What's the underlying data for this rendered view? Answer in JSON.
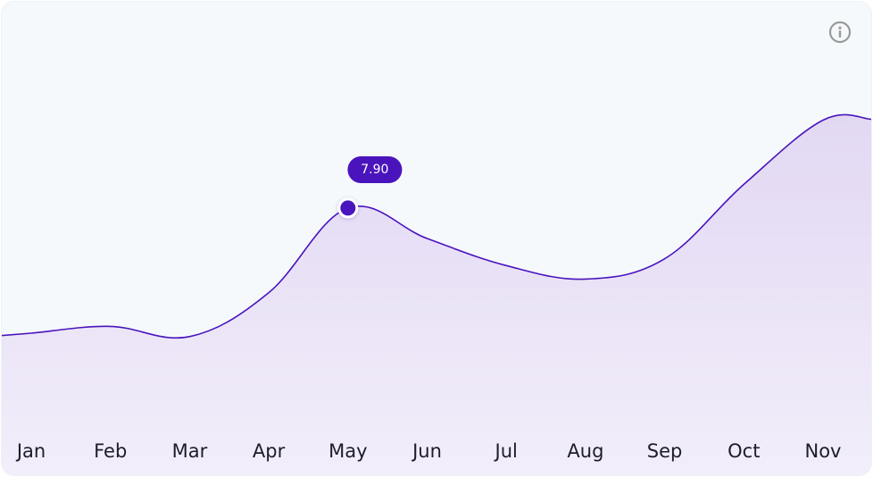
{
  "chart_data": {
    "type": "area",
    "categories": [
      "Jan",
      "Feb",
      "Mar",
      "Apr",
      "May",
      "Jun",
      "Jul",
      "Aug",
      "Sep",
      "Oct",
      "Nov"
    ],
    "series": [
      {
        "values": [
          4.2,
          4.4,
          4.1,
          5.4,
          7.9,
          7.0,
          6.2,
          5.8,
          6.4,
          8.6,
          10.5
        ]
      }
    ],
    "highlight": {
      "index": 4,
      "label": "7.90"
    },
    "ylim": [
      0,
      14
    ],
    "grid": false,
    "legend": "none",
    "colors": {
      "line": "#4a14bd",
      "fill_top": "#e2d8f3",
      "fill_bottom": "#f2eefa",
      "marker": "#4a14bd",
      "background": "#f5f9fc",
      "tick_text": "#1c1c2a",
      "info_icon": "#9a9a9a"
    }
  },
  "toolbar": {
    "info_icon": "info-icon"
  }
}
